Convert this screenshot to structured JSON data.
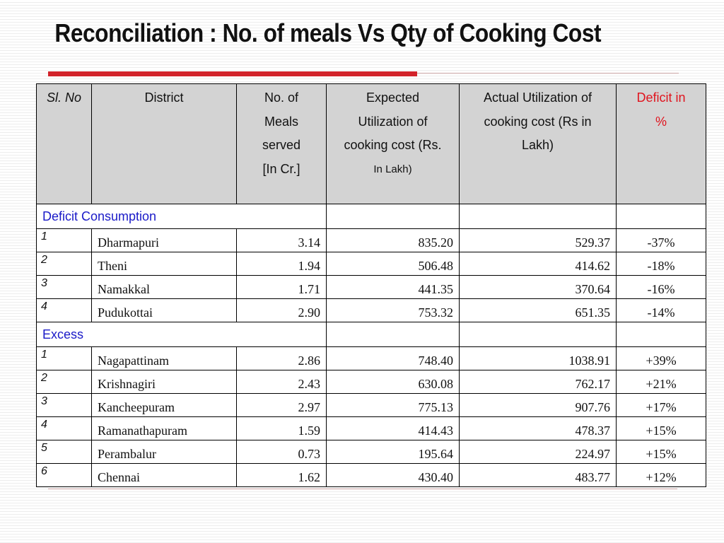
{
  "title": "Reconciliation : No. of meals Vs Qty of Cooking Cost",
  "header": {
    "sl": "Sl. No",
    "district": "District",
    "meals_lines": [
      "No. of",
      "Meals",
      "served",
      "[In Cr.]"
    ],
    "expected_lines": [
      "Expected",
      "Utilization of",
      "cooking cost (Rs.",
      "In Lakh)"
    ],
    "actual_lines": [
      "Actual Utilization of",
      "cooking cost (Rs in",
      "Lakh)"
    ],
    "deficit_lines": [
      "Deficit in",
      "%"
    ]
  },
  "groups": [
    {
      "label": "Deficit Consumption",
      "rows": [
        {
          "sl": "1",
          "district": "Dharmapuri",
          "meals": "3.14",
          "expected": "835.20",
          "actual": "529.37",
          "pct": "-37%"
        },
        {
          "sl": "2",
          "district": "Theni",
          "meals": "1.94",
          "expected": "506.48",
          "actual": "414.62",
          "pct": "-18%"
        },
        {
          "sl": "3",
          "district": "Namakkal",
          "meals": "1.71",
          "expected": "441.35",
          "actual": "370.64",
          "pct": "-16%"
        },
        {
          "sl": "4",
          "district": "Pudukottai",
          "meals": "2.90",
          "expected": "753.32",
          "actual": "651.35",
          "pct": "-14%"
        }
      ]
    },
    {
      "label": "Excess",
      "rows": [
        {
          "sl": "1",
          "district": "Nagapattinam",
          "meals": "2.86",
          "expected": "748.40",
          "actual": "1038.91",
          "pct": "+39%"
        },
        {
          "sl": "2",
          "district": "Krishnagiri",
          "meals": "2.43",
          "expected": "630.08",
          "actual": "762.17",
          "pct": "+21%"
        },
        {
          "sl": "3",
          "district": "Kancheepuram",
          "meals": "2.97",
          "expected": "775.13",
          "actual": "907.76",
          "pct": "+17%"
        },
        {
          "sl": "4",
          "district": "Ramanathapuram",
          "meals": "1.59",
          "expected": "414.43",
          "actual": "478.37",
          "pct": "+15%"
        },
        {
          "sl": "5",
          "district": "Perambalur",
          "meals": "0.73",
          "expected": "195.64",
          "actual": "224.97",
          "pct": "+15%"
        },
        {
          "sl": "6",
          "district": "Chennai",
          "meals": "1.62",
          "expected": "430.40",
          "actual": "483.77",
          "pct": "+12%"
        }
      ]
    }
  ],
  "colors": {
    "title_rule": "#d2232a",
    "group_label": "#1a1ac8",
    "deficit_header": "#e0141e",
    "header_bg": "#d3d3d3"
  }
}
